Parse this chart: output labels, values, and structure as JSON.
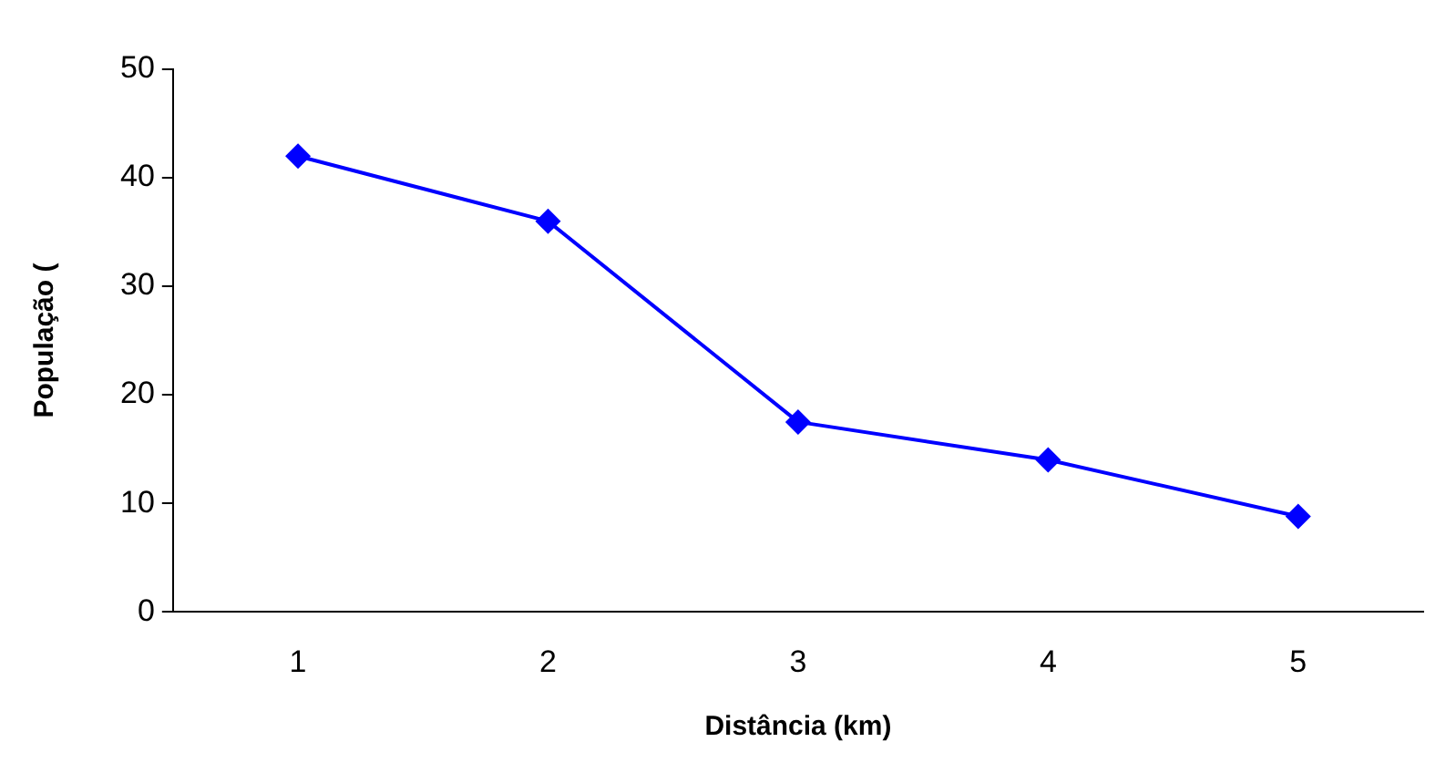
{
  "chart_data": {
    "type": "line",
    "xlabel": "Distância (km)",
    "ylabel": "População (",
    "categories": [
      "1",
      "2",
      "3",
      "4",
      "5"
    ],
    "series": [
      {
        "color": "#0000ff",
        "values": [
          42,
          36,
          17.5,
          14,
          8.8
        ]
      }
    ],
    "ylim": [
      0,
      50
    ],
    "yticks": [
      0,
      10,
      20,
      30,
      40,
      50
    ],
    "grid": false,
    "legend": false,
    "marker": "diamond",
    "line_style": "solid"
  }
}
